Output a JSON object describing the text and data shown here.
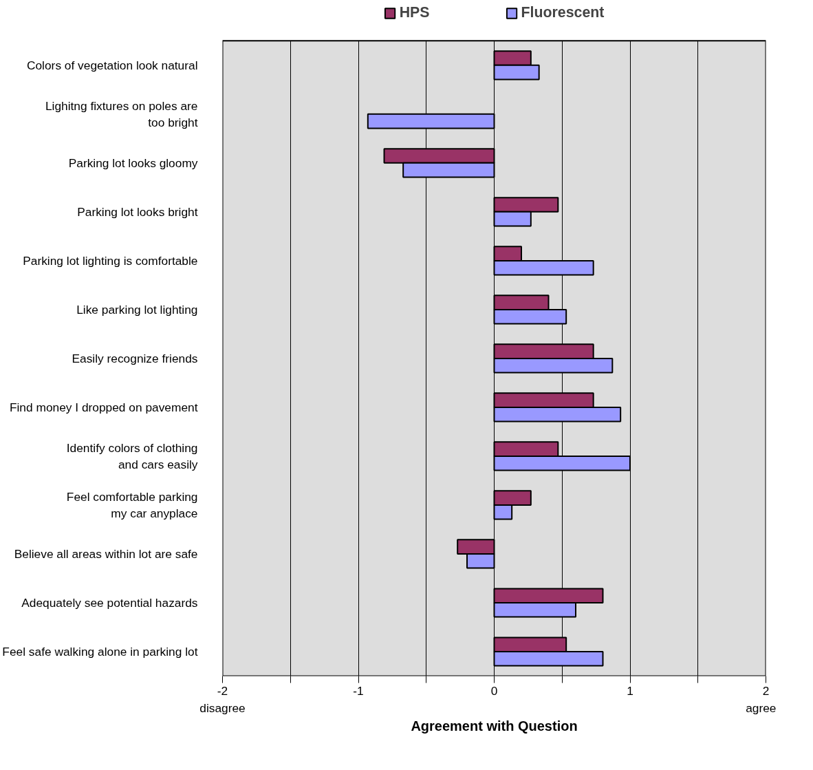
{
  "chart_data": {
    "type": "bar",
    "orientation": "horizontal",
    "xlabel": "Agreement with Question",
    "categories": [
      "Colors of vegetation look natural",
      "Lighitng fixtures on poles are\ntoo bright",
      "Parking lot looks gloomy",
      "Parking lot looks bright",
      "Parking lot lighting is comfortable",
      "Like parking lot lighting",
      "Easily recognize friends",
      "Find money I dropped on pavement",
      "Identify colors of clothing\nand cars easily",
      "Feel comfortable parking\nmy car anyplace",
      "Believe all areas within lot are safe",
      "Adequately see potential hazards",
      "Feel safe walking alone in parking lot"
    ],
    "series": [
      {
        "name": "HPS",
        "color": "#993366",
        "values": [
          0.27,
          null,
          -0.81,
          0.47,
          0.2,
          0.4,
          0.73,
          0.73,
          0.47,
          0.27,
          -0.27,
          0.8,
          0.53
        ]
      },
      {
        "name": "Fluorescent",
        "color": "#9999ff",
        "values": [
          0.33,
          -0.93,
          -0.67,
          0.27,
          0.73,
          0.53,
          0.87,
          0.93,
          1.0,
          0.13,
          -0.2,
          0.6,
          0.8
        ]
      }
    ],
    "xlim": [
      -2,
      2
    ],
    "xticks": [
      -2,
      {
        "value": -1.5,
        "label": null
      },
      -1,
      {
        "value": -0.5,
        "label": null
      },
      0,
      {
        "value": 0.5,
        "label": null
      },
      1,
      {
        "value": 1.5,
        "label": null
      },
      2
    ],
    "grid": "x",
    "legend": "top",
    "annotations": [
      "disagree",
      "agree"
    ]
  }
}
